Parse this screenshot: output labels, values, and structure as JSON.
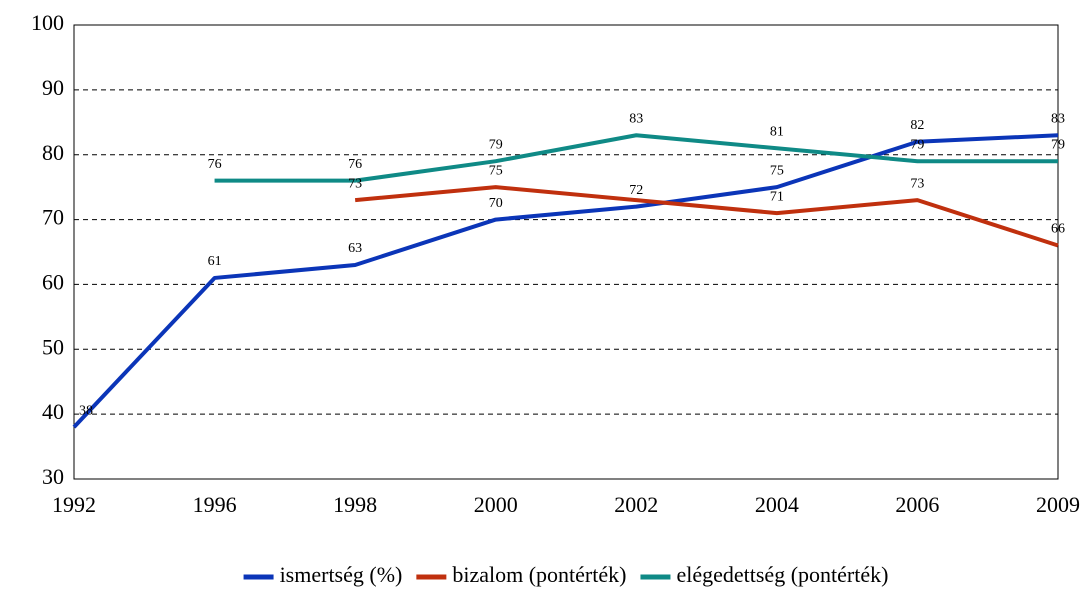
{
  "chart_data": {
    "type": "line",
    "categories": [
      "1992",
      "1996",
      "1998",
      "2000",
      "2002",
      "2004",
      "2006",
      "2009"
    ],
    "series": [
      {
        "name": "ismertség (%)",
        "color": "#0b35b8",
        "values": [
          38,
          61,
          63,
          70,
          72,
          75,
          82,
          83
        ],
        "value_labels": [
          "38",
          "61",
          "63",
          "70",
          "72",
          "75",
          "82",
          "83"
        ]
      },
      {
        "name": "bizalom (pontérték)",
        "color": "#c0300e",
        "values": [
          null,
          null,
          73,
          75,
          73,
          71,
          73,
          66
        ],
        "value_labels": [
          null,
          null,
          "73",
          "75",
          null,
          "71",
          "73",
          "66"
        ]
      },
      {
        "name": "elégedettség (pontérték)",
        "color": "#0f8a86",
        "values": [
          null,
          76,
          76,
          79,
          83,
          81,
          79,
          79
        ],
        "value_labels": [
          null,
          "76",
          "76",
          "79",
          "83",
          "81",
          "79",
          "79"
        ]
      }
    ],
    "ylim": [
      30,
      100
    ],
    "yticks": [
      30,
      40,
      50,
      60,
      70,
      80,
      90,
      100
    ],
    "grid": true,
    "legend": "bottom"
  }
}
